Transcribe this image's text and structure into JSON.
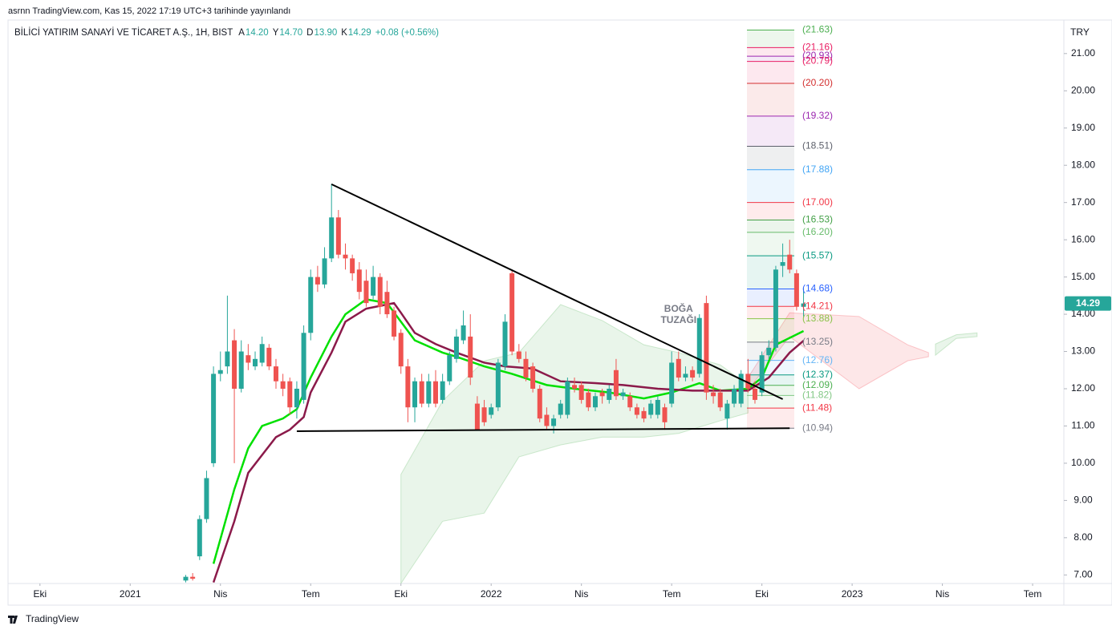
{
  "chart_data": {
    "type": "candlestick",
    "published": "asrnn TradingView.com, Kas 15, 2022 17:19 UTC+3 tarihinde yayınlandı",
    "title": "BİLİCİ YATIRIM SANAYİ VE TİCARET A.Ş., 1H, BIST",
    "ohlc_legend": [
      {
        "key": "A",
        "text": "14.20"
      },
      {
        "key": "Y",
        "text": "14.70"
      },
      {
        "key": "D",
        "text": "13.90"
      },
      {
        "key": "K",
        "text": "14.29"
      }
    ],
    "change": "+0.08 (+0.56%)",
    "currency": "TRY",
    "footer": "TradingView",
    "up_color": "#26a69a",
    "down_color": "#ef5350",
    "xlim": [
      -4.6,
      147.5
    ],
    "xticks": [
      {
        "value": 0,
        "label": "Eki"
      },
      {
        "value": 13,
        "label": "2021"
      },
      {
        "value": 26,
        "label": "Nis"
      },
      {
        "value": 39,
        "label": "Tem"
      },
      {
        "value": 52,
        "label": "Eki"
      },
      {
        "value": 65,
        "label": "2022"
      },
      {
        "value": 78,
        "label": "Nis"
      },
      {
        "value": 91,
        "label": "Tem"
      },
      {
        "value": 104,
        "label": "Eki"
      },
      {
        "value": 117,
        "label": "2023"
      },
      {
        "value": 130,
        "label": "Nis"
      },
      {
        "value": 143,
        "label": "Tem"
      }
    ],
    "ylim": [
      6.77,
      21.9
    ],
    "yticks": [
      {
        "value": 7,
        "label": "7.00"
      },
      {
        "value": 8,
        "label": "8.00"
      },
      {
        "value": 9,
        "label": "9.00"
      },
      {
        "value": 10,
        "label": "10.00"
      },
      {
        "value": 11,
        "label": "11.00"
      },
      {
        "value": 12,
        "label": "12.00"
      },
      {
        "value": 13,
        "label": "13.00"
      },
      {
        "value": 14,
        "label": "14.00"
      },
      {
        "value": 15,
        "label": "15.00"
      },
      {
        "value": 16,
        "label": "16.00"
      },
      {
        "value": 17,
        "label": "17.00"
      },
      {
        "value": 18,
        "label": "18.00"
      },
      {
        "value": 19,
        "label": "19.00"
      },
      {
        "value": 20,
        "label": "20.00"
      },
      {
        "value": 21,
        "label": "21.00"
      }
    ],
    "x": [
      21,
      22,
      23,
      24,
      25,
      26,
      27,
      28,
      29,
      30,
      31,
      32,
      33,
      34,
      35,
      36,
      37,
      38,
      39,
      40,
      41,
      42,
      43,
      44,
      45,
      46,
      47,
      48,
      49,
      50,
      51,
      52,
      53,
      54,
      55,
      56,
      57,
      58,
      59,
      60,
      61,
      62,
      63,
      64,
      65,
      66,
      67,
      68,
      69,
      70,
      71,
      72,
      73,
      74,
      75,
      76,
      77,
      78,
      79,
      80,
      81,
      82,
      83,
      84,
      85,
      86,
      87,
      88,
      89,
      90,
      91,
      92,
      93,
      94,
      95,
      96,
      97,
      98,
      99,
      100,
      101,
      102,
      103,
      104,
      105,
      106,
      107,
      108,
      109,
      110
    ],
    "open": [
      6.85,
      6.95,
      7.5,
      8.5,
      10.0,
      12.4,
      12.6,
      13.3,
      12.0,
      12.9,
      12.6,
      12.7,
      13.1,
      12.6,
      12.2,
      12.2,
      11.5,
      11.7,
      13.5,
      15.0,
      14.8,
      15.5,
      16.6,
      15.6,
      15.5,
      15.2,
      14.9,
      14.5,
      15.0,
      14.6,
      14.1,
      13.5,
      12.6,
      11.5,
      12.2,
      11.6,
      12.2,
      11.7,
      12.2,
      12.8,
      13.3,
      13.4,
      11.6,
      11.5,
      11.3,
      11.5,
      12.6,
      15.1,
      13.0,
      12.8,
      12.6,
      12.0,
      11.3,
      11.0,
      11.3,
      11.3,
      12.1,
      12.1,
      11.9,
      11.5,
      11.9,
      11.7,
      12.5,
      11.8,
      11.8,
      11.5,
      11.4,
      11.3,
      11.3,
      11.5,
      11.6,
      12.8,
      12.3,
      12.5,
      12.4,
      14.3,
      11.9,
      11.9,
      11.2,
      11.6,
      11.6,
      12.4,
      12.0,
      11.9,
      12.9,
      13.1,
      15.3,
      15.6,
      15.1,
      14.2
    ],
    "high": [
      7.0,
      7.05,
      8.6,
      9.8,
      12.6,
      13.0,
      14.5,
      13.6,
      13.3,
      13.2,
      13.0,
      13.4,
      13.2,
      12.8,
      12.4,
      12.3,
      12.2,
      13.7,
      15.2,
      15.3,
      15.8,
      17.5,
      16.8,
      15.9,
      15.6,
      15.4,
      15.2,
      15.3,
      15.1,
      14.9,
      14.2,
      13.6,
      12.8,
      12.3,
      12.4,
      12.4,
      12.5,
      12.4,
      13.0,
      13.6,
      14.1,
      14.0,
      11.8,
      11.7,
      11.6,
      12.8,
      14.0,
      15.2,
      13.2,
      13.0,
      12.7,
      12.1,
      11.5,
      11.3,
      11.7,
      12.3,
      12.3,
      12.2,
      12.0,
      11.9,
      12.0,
      12.1,
      12.8,
      12.0,
      11.9,
      11.6,
      11.5,
      11.7,
      11.8,
      11.6,
      13.0,
      13.0,
      12.6,
      12.6,
      14.0,
      14.5,
      12.1,
      12.0,
      11.7,
      12.1,
      12.5,
      12.8,
      12.2,
      13.0,
      13.3,
      15.3,
      15.9,
      16.0,
      15.2,
      14.7
    ],
    "low": [
      6.8,
      6.85,
      7.4,
      8.4,
      9.9,
      12.2,
      12.4,
      10.0,
      11.9,
      12.5,
      12.5,
      12.6,
      12.5,
      12.0,
      11.8,
      11.3,
      11.2,
      11.6,
      13.3,
      14.6,
      14.7,
      15.4,
      15.5,
      15.2,
      14.9,
      14.4,
      14.2,
      14.4,
      14.0,
      13.9,
      13.3,
      12.4,
      11.1,
      11.1,
      11.5,
      11.5,
      11.5,
      11.6,
      12.1,
      12.7,
      13.2,
      12.1,
      10.9,
      11.0,
      11.2,
      11.4,
      12.5,
      12.9,
      12.7,
      12.2,
      11.9,
      11.1,
      10.9,
      10.8,
      11.2,
      11.2,
      11.9,
      11.6,
      11.4,
      11.4,
      11.6,
      11.6,
      11.7,
      11.7,
      11.4,
      11.2,
      11.1,
      11.2,
      11.2,
      10.9,
      11.5,
      12.2,
      12.2,
      12.2,
      12.3,
      11.7,
      11.6,
      11.4,
      10.9,
      11.5,
      11.5,
      11.9,
      11.6,
      11.8,
      12.8,
      13.0,
      15.0,
      15.1,
      14.1,
      13.9
    ],
    "close": [
      6.95,
      6.9,
      8.5,
      9.6,
      12.4,
      12.5,
      13.0,
      12.0,
      13.0,
      12.7,
      12.8,
      13.2,
      12.6,
      12.2,
      12.0,
      11.5,
      12.0,
      13.5,
      15.0,
      14.8,
      15.5,
      16.6,
      15.6,
      15.5,
      15.1,
      14.6,
      14.3,
      15.0,
      14.2,
      14.0,
      13.4,
      12.6,
      11.5,
      12.2,
      11.6,
      12.2,
      11.6,
      12.2,
      12.9,
      13.4,
      13.7,
      12.3,
      10.9,
      11.1,
      11.5,
      12.7,
      13.8,
      13.0,
      12.8,
      12.3,
      12.0,
      11.2,
      11.0,
      11.2,
      11.6,
      12.2,
      12.0,
      11.7,
      11.5,
      11.8,
      11.8,
      12.0,
      11.8,
      11.9,
      11.5,
      11.3,
      11.2,
      11.6,
      11.7,
      11.1,
      12.7,
      12.3,
      12.4,
      12.3,
      13.9,
      11.9,
      11.8,
      11.5,
      11.6,
      12.0,
      12.4,
      12.0,
      11.7,
      12.9,
      13.1,
      15.2,
      15.4,
      15.2,
      14.2,
      14.29
    ],
    "lines": [
      {
        "color": "#00e000",
        "x": [
          25,
          28,
          30,
          32,
          35,
          37,
          39,
          42,
          44,
          47,
          50,
          52,
          54,
          58,
          60,
          64,
          68,
          73,
          77,
          82,
          87,
          91,
          95,
          98,
          102,
          104,
          106,
          110
        ],
        "values": [
          7.3,
          9.3,
          10.4,
          11.0,
          11.2,
          11.45,
          12.3,
          13.4,
          14.0,
          14.4,
          14.3,
          13.8,
          13.3,
          12.97,
          12.86,
          12.6,
          12.4,
          12.1,
          12.0,
          11.9,
          11.74,
          11.9,
          12.15,
          11.95,
          12.0,
          12.3,
          13.18,
          13.55
        ]
      },
      {
        "color": "#8b1a4a",
        "x": [
          25,
          28,
          30,
          34,
          36,
          38,
          39,
          42,
          44,
          47,
          51,
          52,
          54,
          57,
          60,
          64,
          67,
          71,
          75,
          80,
          84,
          89,
          94,
          98,
          102,
          105,
          108,
          110
        ],
        "values": [
          6.8,
          8.44,
          9.74,
          10.7,
          10.9,
          11.24,
          11.9,
          12.97,
          13.8,
          14.15,
          14.3,
          14.04,
          13.5,
          13.2,
          12.97,
          12.7,
          12.6,
          12.54,
          12.2,
          12.15,
          12.1,
          12.0,
          11.95,
          11.95,
          11.95,
          12.3,
          12.97,
          13.29
        ]
      }
    ],
    "clouds": [
      {
        "color": "#4caf50",
        "x": [
          52,
          58,
          64,
          69,
          75,
          81,
          87,
          92,
          98,
          102
        ],
        "upper": [
          9.7,
          11.67,
          12.75,
          12.97,
          14.26,
          13.83,
          13.18,
          12.97,
          12.64,
          12.1
        ],
        "lower": [
          6.77,
          8.44,
          8.66,
          10.17,
          10.49,
          10.7,
          10.7,
          10.8,
          11.14,
          11.35
        ]
      },
      {
        "color": "#f23645",
        "x": [
          102,
          108,
          118,
          125,
          128
        ],
        "upper": [
          12.3,
          14.04,
          13.94,
          13.18,
          12.97
        ],
        "lower": [
          11.97,
          13.4,
          12.0,
          12.75,
          12.86
        ]
      },
      {
        "color": "#4caf50",
        "x": [
          129,
          132,
          135
        ],
        "upper": [
          13.2,
          13.45,
          13.5
        ],
        "lower": [
          12.9,
          13.35,
          13.4
        ]
      }
    ],
    "trendlines": [
      {
        "x": [
          42,
          107
        ],
        "values": [
          17.49,
          11.72
        ]
      },
      {
        "x": [
          37,
          108
        ],
        "values": [
          10.86,
          10.94
        ]
      }
    ],
    "fib_levels": [
      {
        "value": 21.63,
        "label": "(21.63)",
        "color": "#4caf50"
      },
      {
        "value": 21.16,
        "label": "(21.16)",
        "color": "#e91e63"
      },
      {
        "value": 20.93,
        "label": "(20.93)",
        "color": "#9c27b0"
      },
      {
        "value": 20.79,
        "label": "(20.79)",
        "color": "#e91e63"
      },
      {
        "value": 20.2,
        "label": "(20.20)",
        "color": "#d32f2f"
      },
      {
        "value": 19.32,
        "label": "(19.32)",
        "color": "#9c27b0"
      },
      {
        "value": 18.51,
        "label": "(18.51)",
        "color": "#5d606b"
      },
      {
        "value": 17.88,
        "label": "(17.88)",
        "color": "#42a5f5"
      },
      {
        "value": 17.0,
        "label": "(17.00)",
        "color": "#f23645"
      },
      {
        "value": 16.53,
        "label": "(16.53)",
        "color": "#43a047"
      },
      {
        "value": 16.2,
        "label": "(16.20)",
        "color": "#66bb6a"
      },
      {
        "value": 15.57,
        "label": "(15.57)",
        "color": "#089981"
      },
      {
        "value": 14.68,
        "label": "(14.68)",
        "color": "#2962ff"
      },
      {
        "value": 14.21,
        "label": "(14.21)",
        "color": "#f23645"
      },
      {
        "value": 13.88,
        "label": "(13.88)",
        "color": "#8bc34a"
      },
      {
        "value": 13.25,
        "label": "(13.25)",
        "color": "#787b86"
      },
      {
        "value": 12.76,
        "label": "(12.76)",
        "color": "#64b5f6"
      },
      {
        "value": 12.37,
        "label": "(12.37)",
        "color": "#089981"
      },
      {
        "value": 12.09,
        "label": "(12.09)",
        "color": "#4caf50"
      },
      {
        "value": 11.82,
        "label": "(11.82)",
        "color": "#81c784"
      },
      {
        "value": 11.48,
        "label": "(11.48)",
        "color": "#f23645"
      },
      {
        "value": 10.94,
        "label": "(10.94)",
        "color": "#787b86"
      }
    ],
    "annotation": {
      "lines": [
        "BOĞA",
        "TUZAĞI"
      ],
      "x": 92,
      "value": 14.0
    }
  }
}
